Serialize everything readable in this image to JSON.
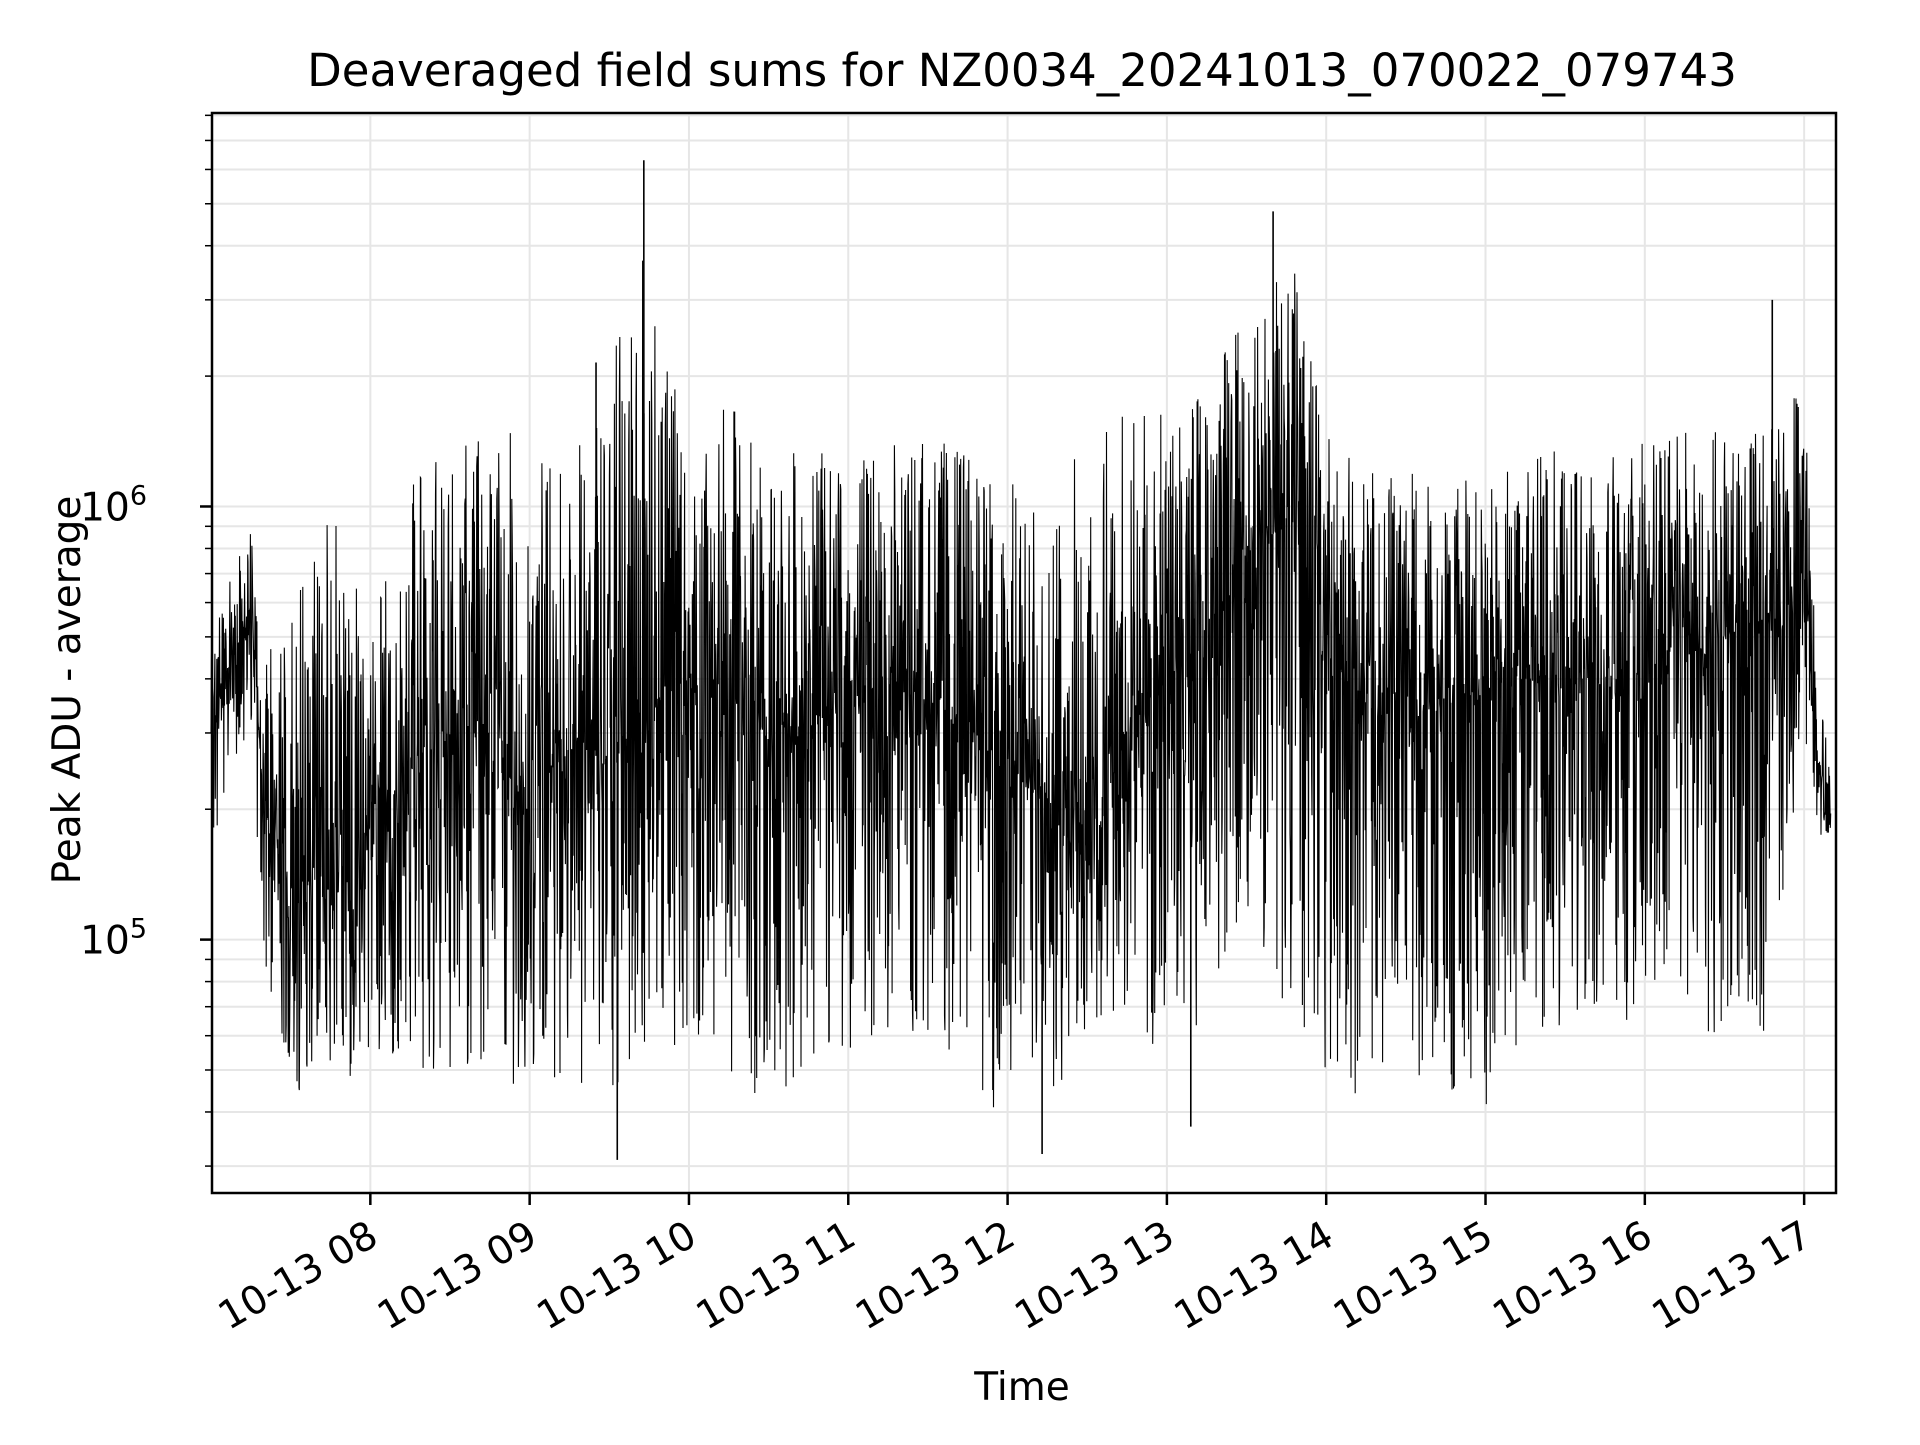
{
  "chart_data": {
    "type": "line",
    "title": "Deaveraged field sums for NZ0034_20241013_070022_079743",
    "xlabel": "Time",
    "ylabel": "Peak ADU - average",
    "yscale": "log",
    "ylim": [
      26000,
      8100000
    ],
    "xlim": [
      "2024-10-13 07:00:22",
      "2024-10-13 17:12:00"
    ],
    "grid": true,
    "legend": "none",
    "x_ticks": [
      "2024-10-13 08:00",
      "2024-10-13 09:00",
      "2024-10-13 10:00",
      "2024-10-13 11:00",
      "2024-10-13 12:00",
      "2024-10-13 13:00",
      "2024-10-13 14:00",
      "2024-10-13 15:00",
      "2024-10-13 16:00",
      "2024-10-13 17:00"
    ],
    "x_tick_labels": [
      "10-13 08",
      "10-13 09",
      "10-13 10",
      "10-13 11",
      "10-13 12",
      "10-13 13",
      "10-13 14",
      "10-13 15",
      "10-13 16",
      "10-13 17"
    ],
    "y_ticks": [
      100000,
      1000000
    ],
    "y_tick_labels": [
      {
        "base": "10",
        "exp": "5"
      },
      {
        "base": "10",
        "exp": "6"
      }
    ],
    "line_color": "#000000",
    "grid_color": "#e6e6e6",
    "series": [
      {
        "x": [
          "2024-10-13 07:00",
          "2024-10-13 07:15",
          "2024-10-13 07:20",
          "2024-10-13 07:30",
          "2024-10-13 07:45",
          "2024-10-13 08:00",
          "2024-10-13 08:15",
          "2024-10-13 08:30",
          "2024-10-13 08:45",
          "2024-10-13 09:00",
          "2024-10-13 09:15",
          "2024-10-13 09:30",
          "2024-10-13 09:45",
          "2024-10-13 10:00",
          "2024-10-13 10:15",
          "2024-10-13 10:30",
          "2024-10-13 10:45",
          "2024-10-13 11:00",
          "2024-10-13 11:15",
          "2024-10-13 11:30",
          "2024-10-13 11:45",
          "2024-10-13 12:00",
          "2024-10-13 12:15",
          "2024-10-13 12:30",
          "2024-10-13 12:45",
          "2024-10-13 13:00",
          "2024-10-13 13:15",
          "2024-10-13 13:30",
          "2024-10-13 13:45",
          "2024-10-13 14:00",
          "2024-10-13 14:15",
          "2024-10-13 14:30",
          "2024-10-13 14:45",
          "2024-10-13 15:00",
          "2024-10-13 15:15",
          "2024-10-13 15:30",
          "2024-10-13 15:45",
          "2024-10-13 16:00",
          "2024-10-13 16:15",
          "2024-10-13 16:30",
          "2024-10-13 16:45",
          "2024-10-13 17:00",
          "2024-10-13 17:05",
          "2024-10-13 17:10"
        ],
        "y": [
          300000,
          600000,
          200000,
          150000,
          120000,
          180000,
          250000,
          300000,
          280000,
          200000,
          300000,
          250000,
          350000,
          400000,
          380000,
          300000,
          320000,
          350000,
          380000,
          360000,
          300000,
          250000,
          200000,
          150000,
          300000,
          400000,
          500000,
          800000,
          900000,
          550000,
          350000,
          300000,
          350000,
          380000,
          400000,
          420000,
          380000,
          400000,
          450000,
          500000,
          550000,
          700000,
          250000,
          180000
        ],
        "low": [
          160000,
          300000,
          90000,
          45000,
          40000,
          50000,
          50000,
          50000,
          45000,
          45000,
          50000,
          35000,
          60000,
          55000,
          50000,
          40000,
          50000,
          55000,
          60000,
          55000,
          55000,
          30000,
          40000,
          60000,
          70000,
          40000,
          70000,
          120000,
          60000,
          50000,
          42000,
          45000,
          45000,
          40000,
          55000,
          60000,
          50000,
          55000,
          50000,
          55000,
          60000,
          280000,
          170000,
          170000
        ],
        "high": [
          550000,
          980000,
          420000,
          650000,
          1000000,
          520000,
          1200000,
          1350000,
          1600000,
          1400000,
          1300000,
          2100000,
          5500000,
          1050000,
          1800000,
          1300000,
          1350000,
          1300000,
          1400000,
          1500000,
          1350000,
          1200000,
          900000,
          1700000,
          1800000,
          1600000,
          2000000,
          3000000,
          4300000,
          1500000,
          1200000,
          1250000,
          1100000,
          1200000,
          1300000,
          1400000,
          1400000,
          1450000,
          1500000,
          1500000,
          1600000,
          2000000,
          500000,
          230000
        ]
      }
    ],
    "notable_peaks": [
      {
        "x": "2024-10-13 09:43",
        "y": 6300000
      },
      {
        "x": "2024-10-13 13:40",
        "y": 4800000
      },
      {
        "x": "2024-10-13 16:48",
        "y": 3000000
      },
      {
        "x": "2024-10-13 09:25",
        "y": 2150000
      }
    ],
    "notable_troughs": [
      {
        "x": "2024-10-13 09:33",
        "y": 31000
      },
      {
        "x": "2024-10-13 12:13",
        "y": 32000
      },
      {
        "x": "2024-10-13 13:09",
        "y": 37000
      }
    ]
  }
}
